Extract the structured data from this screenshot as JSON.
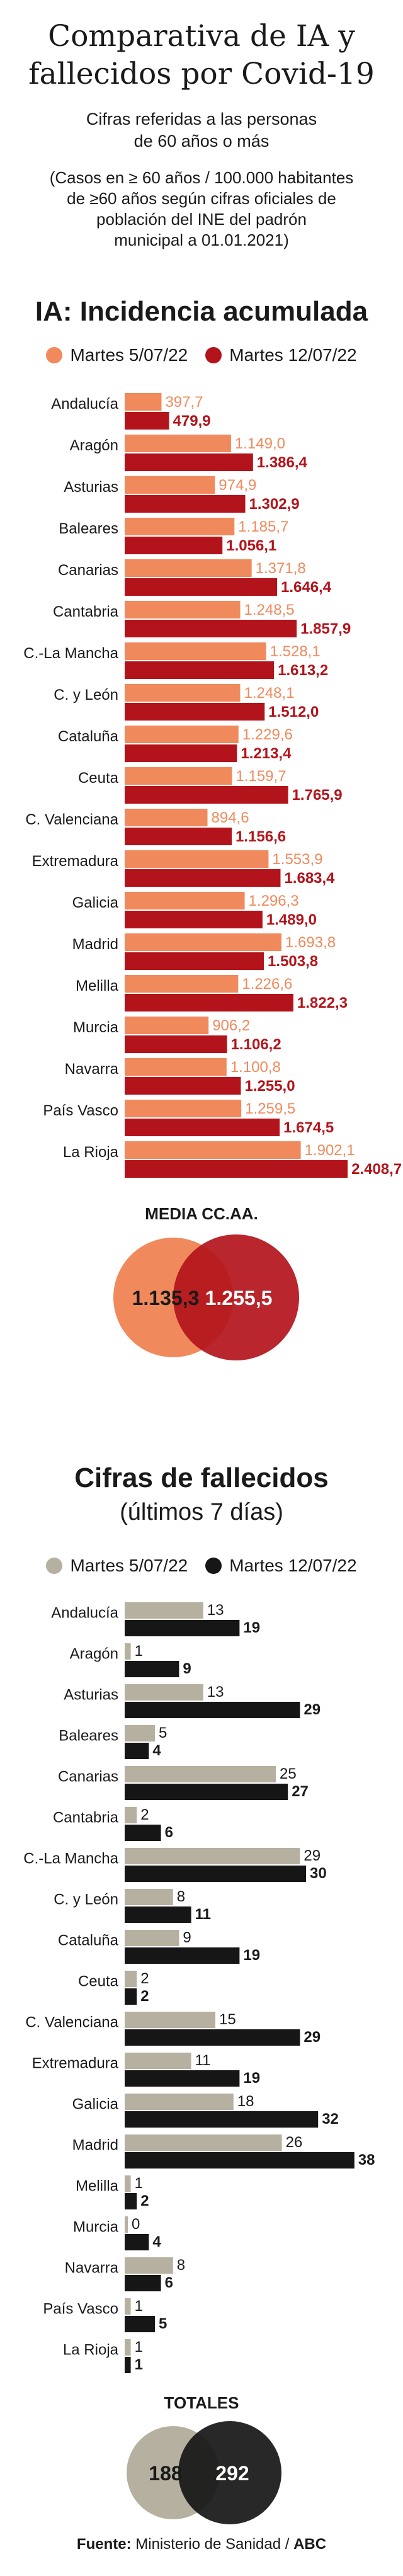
{
  "header": {
    "title_line1": "Comparativa de IA y",
    "title_line2": "fallecidos por Covid-19",
    "subtitle_line1": "Cifras referidas a las personas",
    "subtitle_line2": "de 60 años o más",
    "note_line1": "(Casos en ≥ 60 años / 100.000 habitantes",
    "note_line2": "de ≥60 años según cifras oficiales de",
    "note_line3": "población del INE del padrón",
    "note_line4": "municipal a 01.01.2021)"
  },
  "colors": {
    "ia_s1": "#f08a5d",
    "ia_s2": "#b3141b",
    "def_s1": "#b5b09f",
    "def_s2": "#161616"
  },
  "chart_data": [
    {
      "type": "bar",
      "orientation": "horizontal",
      "title": "IA: Incidencia acumulada",
      "categories": [
        "Andalucía",
        "Aragón",
        "Asturias",
        "Baleares",
        "Canarias",
        "Cantabria",
        "C.-La Mancha",
        "C. y León",
        "Cataluña",
        "Ceuta",
        "C. Valenciana",
        "Extremadura",
        "Galicia",
        "Madrid",
        "Melilla",
        "Murcia",
        "Navarra",
        "País Vasco",
        "La Rioja"
      ],
      "series": [
        {
          "name": "Martes 5/07/22",
          "values": [
            397.7,
            1149.0,
            974.9,
            1185.7,
            1371.8,
            1248.5,
            1528.1,
            1248.1,
            1229.6,
            1159.7,
            894.6,
            1553.9,
            1296.3,
            1693.8,
            1226.6,
            906.2,
            1100.8,
            1259.5,
            1902.1
          ],
          "labels": [
            "397,7",
            "1.149,0",
            "974,9",
            "1.185,7",
            "1.371,8",
            "1.248,5",
            "1.528,1",
            "1.248,1",
            "1.229,6",
            "1.159,7",
            "894,6",
            "1.553,9",
            "1.296,3",
            "1.693,8",
            "1.226,6",
            "906,2",
            "1.100,8",
            "1.259,5",
            "1.902,1"
          ]
        },
        {
          "name": "Martes 12/07/22",
          "values": [
            479.9,
            1386.4,
            1302.9,
            1056.1,
            1646.4,
            1857.9,
            1613.2,
            1512.0,
            1213.4,
            1765.9,
            1156.6,
            1683.4,
            1489.0,
            1503.8,
            1822.3,
            1106.2,
            1255.0,
            1674.5,
            2408.7
          ],
          "labels": [
            "479,9",
            "1.386,4",
            "1.302,9",
            "1.056,1",
            "1.646,4",
            "1.857,9",
            "1.613,2",
            "1.512,0",
            "1.213,4",
            "1.765,9",
            "1.156,6",
            "1.683,4",
            "1.489,0",
            "1.503,8",
            "1.822,3",
            "1.106,2",
            "1.255,0",
            "1.674,5",
            "2.408,7"
          ]
        }
      ],
      "summary": {
        "title": "MEDIA CC.AA.",
        "values": [
          "1.135,3",
          "1.255,5"
        ]
      }
    },
    {
      "type": "bar",
      "orientation": "horizontal",
      "title": "Cifras de fallecidos",
      "subtitle": "(últimos 7 días)",
      "categories": [
        "Andalucía",
        "Aragón",
        "Asturias",
        "Baleares",
        "Canarias",
        "Cantabria",
        "C.-La Mancha",
        "C. y León",
        "Cataluña",
        "Ceuta",
        "C. Valenciana",
        "Extremadura",
        "Galicia",
        "Madrid",
        "Melilla",
        "Murcia",
        "Navarra",
        "País Vasco",
        "La Rioja"
      ],
      "series": [
        {
          "name": "Martes 5/07/22",
          "values": [
            13,
            1,
            13,
            5,
            25,
            2,
            29,
            8,
            9,
            2,
            15,
            11,
            18,
            26,
            1,
            0,
            8,
            1,
            1
          ]
        },
        {
          "name": "Martes 12/07/22",
          "values": [
            19,
            9,
            29,
            4,
            27,
            6,
            30,
            11,
            19,
            2,
            29,
            19,
            32,
            38,
            2,
            4,
            6,
            5,
            1
          ]
        }
      ],
      "summary": {
        "title": "TOTALES",
        "values": [
          "188",
          "292"
        ]
      }
    }
  ],
  "footer": {
    "source_label": "Fuente:",
    "source_text": " Ministerio de Sanidad / ",
    "source_brand": "ABC"
  }
}
